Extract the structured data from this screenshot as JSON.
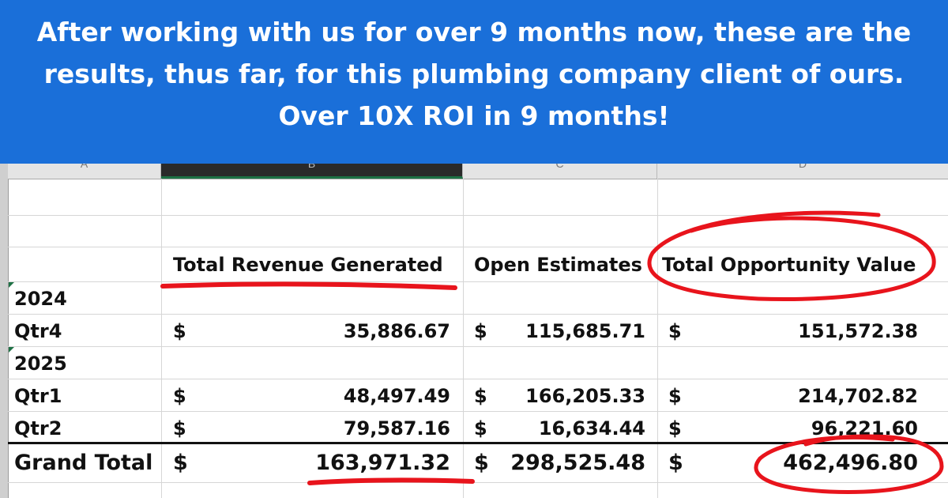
{
  "headline": "After working with us for over 9 months now, these are the results, thus far, for this plumbing company client of ours.  Over 10X ROI in 9 months!",
  "colors": {
    "banner": "#1a6fd9",
    "marker": "#e8141c",
    "cell_marker": "#1e7145"
  },
  "column_headers": [
    "A",
    "B",
    "C",
    "D"
  ],
  "table": {
    "headers": [
      "Total Revenue Generated",
      "Open Estimates",
      "Total Opportunity Value"
    ],
    "currency": "$",
    "rows": [
      {
        "label": "2024",
        "group": true
      },
      {
        "label": "Qtr4",
        "revenue": "35,886.67",
        "estimates": "115,685.71",
        "opportunity": "151,572.38"
      },
      {
        "label": "2025",
        "group": true
      },
      {
        "label": "Qtr1",
        "revenue": "48,497.49",
        "estimates": "166,205.33",
        "opportunity": "214,702.82"
      },
      {
        "label": "Qtr2",
        "revenue": "79,587.16",
        "estimates": "16,634.44",
        "opportunity": "96,221.60"
      }
    ],
    "total": {
      "label": "Grand Total",
      "revenue": "163,971.32",
      "estimates": "298,525.48",
      "opportunity": "462,496.80"
    }
  }
}
